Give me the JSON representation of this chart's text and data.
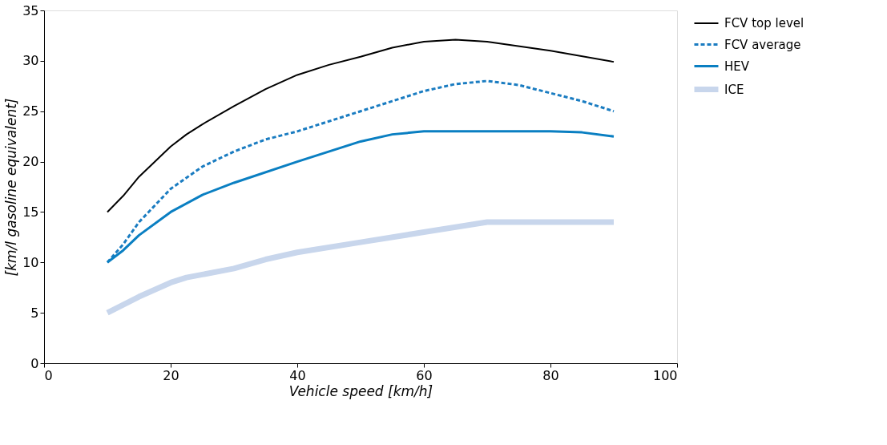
{
  "chart_data": {
    "type": "line",
    "xlabel": "Vehicle speed [km/h]",
    "ylabel": "[km/l gasoline equivalent]",
    "xlim": [
      0,
      100
    ],
    "xticks": [
      0,
      20,
      40,
      60,
      80,
      100
    ],
    "ylim": [
      0,
      35
    ],
    "yticks": [
      0,
      5,
      10,
      15,
      20,
      25,
      30,
      35
    ],
    "grid": false,
    "legend": "right",
    "marker": "none",
    "series": [
      {
        "name": "FCV top level",
        "color": "#000000",
        "line_style": "solid",
        "x": [
          10,
          12.5,
          15,
          20,
          22.5,
          25,
          30,
          35,
          40,
          45,
          50,
          55,
          60,
          65,
          70,
          80,
          90
        ],
        "values": [
          15,
          16.6,
          18.5,
          21.5,
          22.7,
          23.7,
          25.5,
          27.2,
          28.6,
          29.6,
          30.4,
          31.3,
          31.9,
          32.1,
          31.9,
          31,
          29.9
        ]
      },
      {
        "name": "FCV average",
        "color": "#1a7cc1",
        "line_style": "dashed",
        "x": [
          10,
          12.5,
          15,
          20,
          25,
          30,
          35,
          40,
          45,
          50,
          55,
          60,
          65,
          70,
          75,
          80,
          85,
          90
        ],
        "values": [
          10,
          11.8,
          14,
          17.3,
          19.5,
          21,
          22.2,
          23,
          24,
          25,
          26,
          27,
          27.7,
          28,
          27.6,
          26.8,
          26,
          25
        ]
      },
      {
        "name": "HEV",
        "color": "#0a7fc2",
        "line_style": "solid",
        "x": [
          10,
          12.5,
          15,
          20,
          25,
          30,
          40,
          50,
          55,
          60,
          70,
          80,
          85,
          90
        ],
        "values": [
          10,
          11.2,
          12.7,
          15,
          16.7,
          17.9,
          20,
          22,
          22.7,
          23,
          23,
          23,
          22.9,
          22.5
        ]
      },
      {
        "name": "ICE",
        "color": "#c8d6ec",
        "line_style": "solid",
        "x": [
          10,
          15,
          20,
          22.5,
          25,
          30,
          35,
          40,
          50,
          60,
          70,
          80,
          90
        ],
        "values": [
          5,
          6.6,
          8,
          8.5,
          8.8,
          9.4,
          10.3,
          11,
          12,
          13,
          14,
          14,
          14
        ]
      }
    ]
  }
}
